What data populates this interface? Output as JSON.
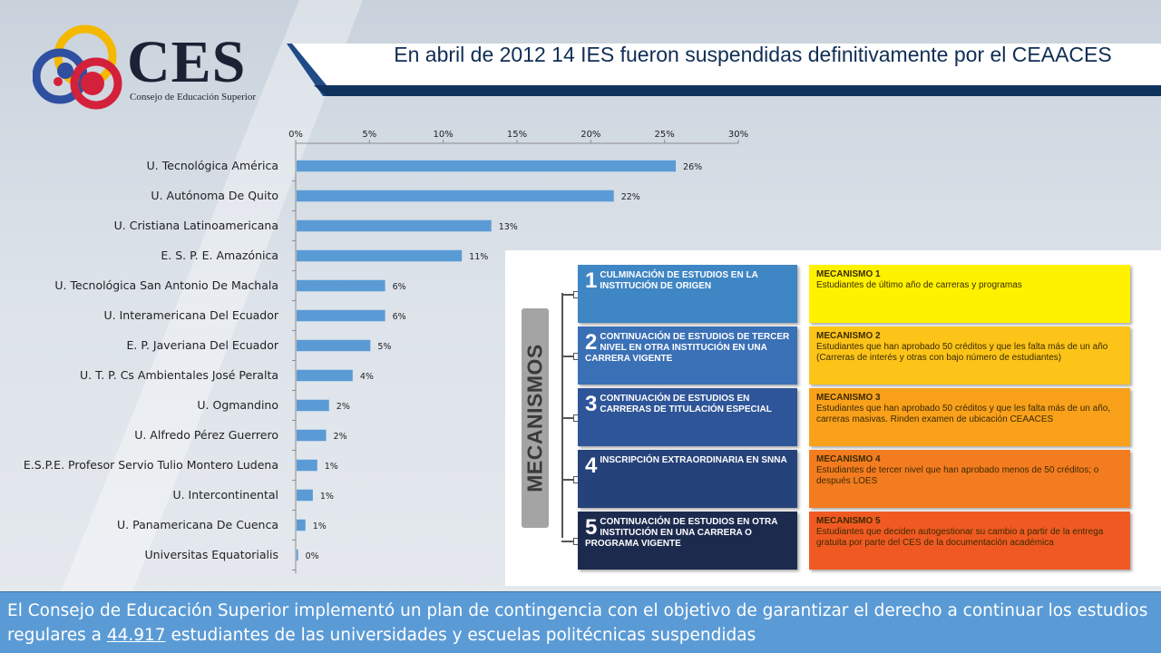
{
  "logo": {
    "text": "CES",
    "subtitle": "Consejo de Educación Superior"
  },
  "title": "En abril de 2012 14 IES fueron suspendidas definitivamente por el CEAACES",
  "chart_data": {
    "type": "bar",
    "orientation": "horizontal",
    "categories": [
      "U. Tecnológica América",
      "U. Autónoma De Quito",
      "U. Cristiana Latinoamericana",
      "E. S. P. E. Amazónica",
      "U. Tecnológica San Antonio De Machala",
      "U. Interamericana Del Ecuador",
      "E. P. Javeriana Del Ecuador",
      "U. T. P. Cs Ambientales José Peralta",
      "U. Ogmandino",
      "U. Alfredo Pérez Guerrero",
      "E.S.P.E. Profesor Servio Tulio Montero Ludena",
      "U. Intercontinental",
      "U. Panamericana De Cuenca",
      "Universitas Equatorialis"
    ],
    "values": [
      25.7,
      21.5,
      13.2,
      11.2,
      6.0,
      6.0,
      5.0,
      3.8,
      2.2,
      2.0,
      1.4,
      1.1,
      0.6,
      0.1
    ],
    "data_labels": [
      "26%",
      "22%",
      "13%",
      "11%",
      "6%",
      "6%",
      "5%",
      "4%",
      "2%",
      "2%",
      "1%",
      "1%",
      "1%",
      "0%"
    ],
    "xticks": [
      "0%",
      "5%",
      "10%",
      "15%",
      "20%",
      "25%",
      "30%"
    ],
    "xlim": [
      0,
      30
    ],
    "axis_position": "top",
    "bar_color": "#5b9bd5",
    "grid": false
  },
  "mechanisms": {
    "side_label": "MECANISMOS",
    "items": [
      {
        "num": "1",
        "text": "CULMINACIÓN DE ESTUDIOS EN LA INSTITUCIÓN DE ORIGEN",
        "color": "#3f86c4",
        "title": "MECANISMO 1",
        "desc": "Estudiantes de último año de carreras y programas",
        "desc_color": "#fff200"
      },
      {
        "num": "2",
        "text": "CONTINUACIÓN DE ESTUDIOS DE TERCER NIVEL EN OTRA INSTITUCIÓN EN UNA CARRERA VIGENTE",
        "color": "#3a70b6",
        "title": "MECANISMO 2",
        "desc": "Estudiantes que han aprobado 50 créditos y que les falta más de un año (Carreras de interés y otras con bajo número de estudiantes)",
        "desc_color": "#fcc419"
      },
      {
        "num": "3",
        "text": "CONTINUACIÓN DE ESTUDIOS EN CARRERAS DE TITULACIÓN ESPECIAL",
        "color": "#2f5599",
        "title": "MECANISMO 3",
        "desc": "Estudiantes que han aprobado 50 créditos y que les falta más de un año, carreras masivas. Rinden examen de ubicación CEAACES",
        "desc_color": "#f9a11b"
      },
      {
        "num": "4",
        "text": "INSCRIPCIÓN EXTRAORDINARIA EN SNNA",
        "color": "#26427a",
        "title": "MECANISMO 4",
        "desc": "Estudiantes de tercer nivel que han aprobado menos de 50 créditos; o después LOES",
        "desc_color": "#f47c20"
      },
      {
        "num": "5",
        "text": "CONTINUACIÓN DE ESTUDIOS EN OTRA INSTITUCIÓN EN UNA CARRERA O PROGRAMA VIGENTE",
        "color": "#1c2a4e",
        "title": "MECANISMO 5",
        "desc": "Estudiantes que deciden autogestionar su cambio a partir de la entrega gratuita por parte del CES de la documentación académica",
        "desc_color": "#f05a22"
      }
    ]
  },
  "caption": {
    "part1": "El Consejo de Educación Superior implementó un plan de contingencia con el objetivo de garantizar el derecho a continuar los estudios regulares a ",
    "number": "44.917",
    "part2": " estudiantes de las universidades y escuelas politécnicas suspendidas"
  }
}
